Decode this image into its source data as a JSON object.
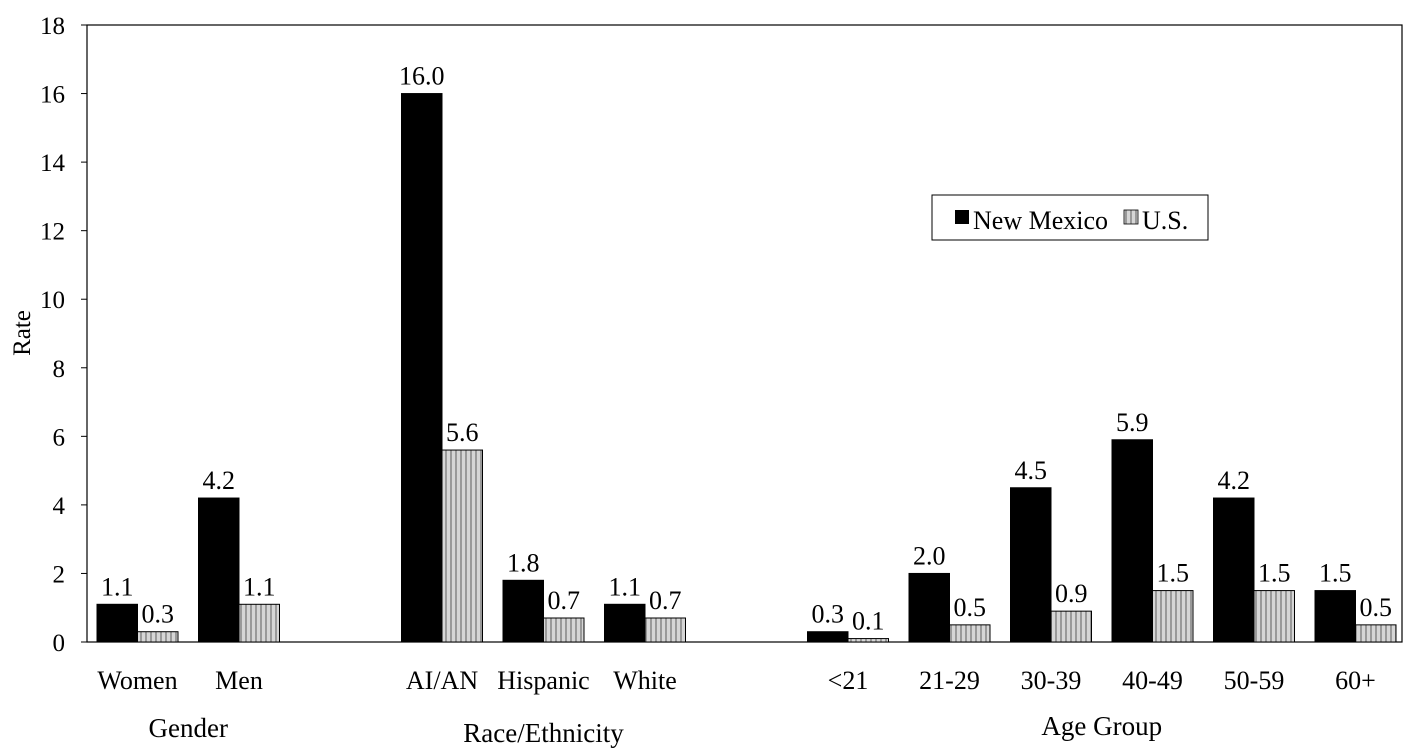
{
  "chart_data": {
    "type": "bar",
    "ylabel": "Rate",
    "ylim": [
      0,
      18
    ],
    "yticks": [
      0,
      2,
      4,
      6,
      8,
      10,
      12,
      14,
      16,
      18
    ],
    "grid": false,
    "legend_position": "right",
    "series": [
      {
        "name": "New Mexico",
        "color": "#000000"
      },
      {
        "name": "U.S.",
        "color": "#c8c8c8",
        "pattern": "vertical-stripes"
      }
    ],
    "groups": [
      {
        "label": "Gender",
        "categories": [
          "Women",
          "Men"
        ],
        "values": {
          "New Mexico": [
            1.1,
            4.2
          ],
          "U.S.": [
            0.3,
            1.1
          ]
        },
        "value_labels": {
          "New Mexico": [
            "1.1",
            "4.2"
          ],
          "U.S.": [
            "0.3",
            "1.1"
          ]
        }
      },
      {
        "label": "Race/Ethnicity",
        "categories": [
          "AI/AN",
          "Hispanic",
          "White"
        ],
        "values": {
          "New Mexico": [
            16.0,
            1.8,
            1.1
          ],
          "U.S.": [
            5.6,
            0.7,
            0.7
          ]
        },
        "value_labels": {
          "New Mexico": [
            "16.0",
            "1.8",
            "1.1"
          ],
          "U.S.": [
            "5.6",
            "0.7",
            "0.7"
          ]
        }
      },
      {
        "label": "Age Group",
        "categories": [
          "<21",
          "21-29",
          "30-39",
          "40-49",
          "50-59",
          "60+"
        ],
        "values": {
          "New Mexico": [
            0.3,
            2.0,
            4.5,
            5.9,
            4.2,
            1.5
          ],
          "U.S.": [
            0.1,
            0.5,
            0.9,
            1.5,
            1.5,
            0.5
          ]
        },
        "value_labels": {
          "New Mexico": [
            "0.3",
            "2.0",
            "4.5",
            "5.9",
            "4.2",
            "1.5"
          ],
          "U.S.": [
            "0.1",
            "0.5",
            "0.9",
            "1.5",
            "1.5",
            "0.5"
          ]
        }
      }
    ]
  }
}
